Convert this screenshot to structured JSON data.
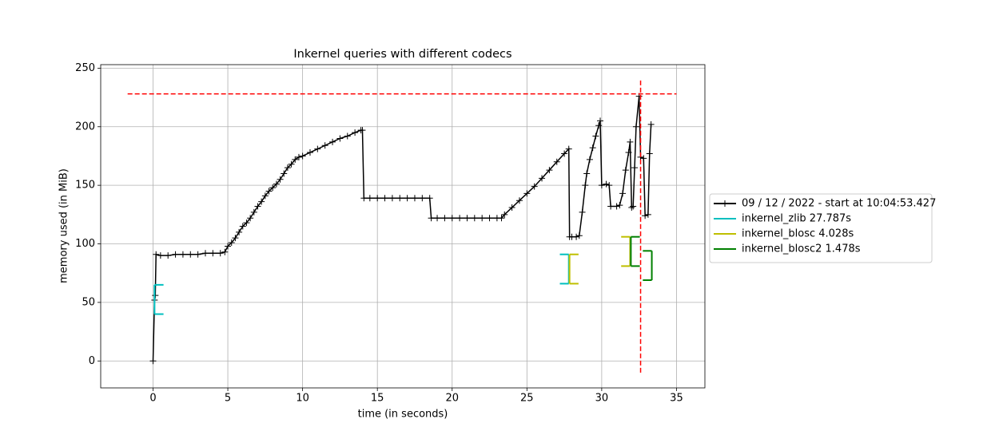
{
  "chart_data": {
    "type": "line",
    "title": "Inkernel queries with different codecs",
    "xlabel": "time (in seconds)",
    "ylabel": "memory used (in MiB)",
    "xlim": [
      -3.5,
      36.9
    ],
    "ylim": [
      -23,
      253
    ],
    "xticks": [
      0,
      5,
      10,
      15,
      20,
      25,
      30,
      35
    ],
    "yticks": [
      0,
      50,
      100,
      150,
      200,
      250
    ],
    "grid": true,
    "legend": "right outside",
    "series": [
      {
        "name": "09 / 12 / 2022 - start at 10:04:53.427",
        "color": "#000000",
        "x": [
          0,
          0.1,
          0.15,
          0.2,
          0.5,
          1.0,
          1.5,
          2.0,
          2.5,
          3.0,
          3.5,
          4.0,
          4.5,
          4.8,
          5.0,
          5.25,
          5.5,
          5.75,
          6.0,
          6.25,
          6.5,
          6.75,
          7.0,
          7.25,
          7.5,
          7.75,
          8.0,
          8.25,
          8.5,
          8.75,
          9.0,
          9.25,
          9.5,
          9.75,
          10.0,
          10.5,
          11.0,
          11.5,
          12.0,
          12.5,
          13.0,
          13.5,
          13.9,
          14.0,
          14.1,
          14.5,
          15.0,
          15.5,
          16.0,
          16.5,
          17.0,
          17.5,
          18.0,
          18.5,
          18.6,
          19.0,
          19.5,
          20.0,
          20.5,
          21.0,
          21.5,
          22.0,
          22.5,
          23.0,
          23.3,
          23.5,
          24.0,
          24.5,
          25.0,
          25.5,
          26.0,
          26.5,
          27.0,
          27.5,
          27.8,
          27.85,
          28.0,
          28.3,
          28.5,
          28.7,
          28.9,
          29.0,
          29.2,
          29.4,
          29.6,
          29.8,
          29.9,
          30.0,
          30.3,
          30.5,
          30.6,
          31.0,
          31.2,
          31.4,
          31.6,
          31.8,
          31.9,
          32.0,
          32.1,
          32.2,
          32.3,
          32.5,
          32.6,
          32.8,
          32.9,
          33.1,
          33.2,
          33.3
        ],
        "values": [
          0,
          52,
          56,
          91,
          90,
          90,
          91,
          91,
          91,
          91,
          92,
          92,
          92,
          93,
          98,
          101,
          105,
          110,
          115,
          118,
          122,
          127,
          132,
          136,
          141,
          145,
          148,
          151,
          155,
          160,
          165,
          168,
          172,
          174,
          175,
          178,
          181,
          184,
          187,
          190,
          192,
          195,
          197,
          197,
          139,
          139,
          139,
          139,
          139,
          139,
          139,
          139,
          139,
          139,
          122,
          122,
          122,
          122,
          122,
          122,
          122,
          122,
          122,
          122,
          122,
          125,
          131,
          137,
          143,
          149,
          156,
          163,
          170,
          177,
          181,
          106,
          106,
          106,
          107,
          127,
          150,
          160,
          172,
          182,
          192,
          201,
          205,
          150,
          151,
          150,
          132,
          132,
          133,
          143,
          163,
          178,
          187,
          131,
          132,
          165,
          200,
          226,
          174,
          173,
          124,
          125,
          177,
          202
        ]
      },
      {
        "name": "inkernel_zlib 27.787s",
        "color": "#00bfbf",
        "x": [
          0.1,
          27.8
        ],
        "low": [
          40,
          66
        ],
        "high": [
          65,
          91
        ]
      },
      {
        "name": "inkernel_blosc 4.028s",
        "color": "#bfbf00",
        "x": [
          27.85,
          31.9
        ],
        "low": [
          66,
          81
        ],
        "high": [
          91,
          106
        ]
      },
      {
        "name": "inkernel_blosc2 1.478s",
        "color": "#008000",
        "x": [
          31.95,
          33.35
        ],
        "low": [
          81,
          69
        ],
        "high": [
          106,
          94
        ]
      }
    ],
    "hline": {
      "y": 228,
      "xmin": -1.7,
      "xmax": 35,
      "color": "#ff0000"
    },
    "vline": {
      "x": 32.6,
      "ymin": -10,
      "ymax": 240,
      "color": "#ff0000"
    }
  }
}
